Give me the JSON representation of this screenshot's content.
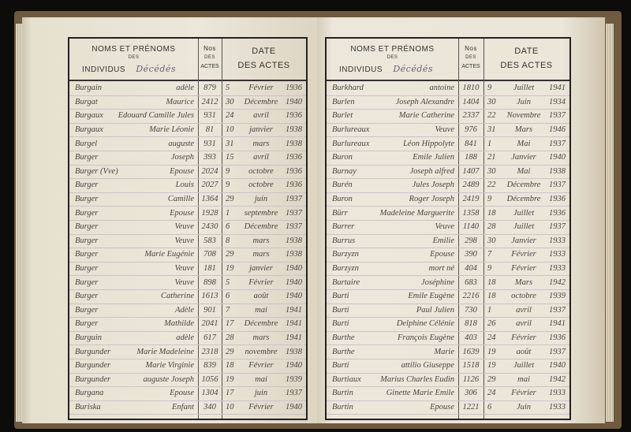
{
  "header": {
    "noms": "NOMS ET PRÉNOMS",
    "des": "DES",
    "individus": "INDIVIDUS",
    "category": "Décédés",
    "no": "Nos",
    "no_des": "DES",
    "no_actes": "ACTES",
    "date": "DATE",
    "date_actes": "DES ACTES"
  },
  "left_rows": [
    [
      "Burgain",
      "adèle",
      "879",
      "5",
      "Février",
      "1936"
    ],
    [
      "Burgat",
      "Maurice",
      "2412",
      "30",
      "Décembre",
      "1940"
    ],
    [
      "Burgaux",
      "Edouard Camille Jules",
      "931",
      "24",
      "avril",
      "1936"
    ],
    [
      "Burgaux",
      "Marie Léonie",
      "81",
      "10",
      "janvier",
      "1938"
    ],
    [
      "Burgel",
      "auguste",
      "931",
      "31",
      "mars",
      "1938"
    ],
    [
      "Burger",
      "Joseph",
      "393",
      "15",
      "avril",
      "1936"
    ],
    [
      "Burger (Vve)",
      "Epouse",
      "2024",
      "9",
      "octobre",
      "1936"
    ],
    [
      "Burger",
      "Louis",
      "2027",
      "9",
      "octobre",
      "1936"
    ],
    [
      "Burger",
      "Camille",
      "1364",
      "29",
      "juin",
      "1937"
    ],
    [
      "Burger",
      "Epouse",
      "1928",
      "1",
      "septembre",
      "1937"
    ],
    [
      "Burger",
      "Veuve",
      "2430",
      "6",
      "Décembre",
      "1937"
    ],
    [
      "Burger",
      "Veuve",
      "583",
      "8",
      "mars",
      "1938"
    ],
    [
      "Burger",
      "Marie Eugénie",
      "708",
      "29",
      "mars",
      "1938"
    ],
    [
      "Burger",
      "Veuve",
      "181",
      "19",
      "janvier",
      "1940"
    ],
    [
      "Burger",
      "Veuve",
      "898",
      "5",
      "Février",
      "1940"
    ],
    [
      "Burger",
      "Catherine",
      "1613",
      "6",
      "août",
      "1940"
    ],
    [
      "Burger",
      "Adèle",
      "901",
      "7",
      "mai",
      "1941"
    ],
    [
      "Burger",
      "Mathilde",
      "2041",
      "17",
      "Décembre",
      "1941"
    ],
    [
      "Burguin",
      "adèle",
      "617",
      "28",
      "mars",
      "1941"
    ],
    [
      "Burgunder",
      "Marie Madeleine",
      "2318",
      "29",
      "novembre",
      "1938"
    ],
    [
      "Burgunder",
      "Marie Virginie",
      "839",
      "18",
      "Février",
      "1940"
    ],
    [
      "Burgunder",
      "auguste Joseph",
      "1056",
      "19",
      "mai",
      "1939"
    ],
    [
      "Burgana",
      "Epouse",
      "1304",
      "17",
      "juin",
      "1937"
    ],
    [
      "Buriska",
      "Enfant",
      "340",
      "10",
      "Février",
      "1940"
    ]
  ],
  "right_rows": [
    [
      "Burkhard",
      "antoine",
      "1810",
      "9",
      "Juillet",
      "1941"
    ],
    [
      "Burlen",
      "Joseph Alexandre",
      "1404",
      "30",
      "Juin",
      "1934"
    ],
    [
      "Burlet",
      "Marie Catherine",
      "2337",
      "22",
      "Novembre",
      "1937"
    ],
    [
      "Burlureaux",
      "Veuve",
      "976",
      "31",
      "Mars",
      "1946"
    ],
    [
      "Burlureaux",
      "Léon Hippolyte",
      "841",
      "1",
      "Mai",
      "1937"
    ],
    [
      "Buron",
      "Emile Julien",
      "188",
      "21",
      "Janvier",
      "1940"
    ],
    [
      "Burnay",
      "Joseph alfred",
      "1407",
      "30",
      "Mai",
      "1938"
    ],
    [
      "Burén",
      "Jules Joseph",
      "2489",
      "22",
      "Décembre",
      "1937"
    ],
    [
      "Buron",
      "Roger Joseph",
      "2419",
      "9",
      "Décembre",
      "1936"
    ],
    [
      "Bürr",
      "Madeleine Marguerite",
      "1358",
      "18",
      "Juillet",
      "1936"
    ],
    [
      "Burrer",
      "Veuve",
      "1140",
      "28",
      "Juillet",
      "1937"
    ],
    [
      "Burrus",
      "Emilie",
      "298",
      "30",
      "Janvier",
      "1933"
    ],
    [
      "Burzyzn",
      "Epouse",
      "390",
      "7",
      "Février",
      "1933"
    ],
    [
      "Burzyzn",
      "mort né",
      "404",
      "9",
      "Février",
      "1933"
    ],
    [
      "Burtaire",
      "Joséphine",
      "683",
      "18",
      "Mars",
      "1942"
    ],
    [
      "Burti",
      "Emile Eugène",
      "2216",
      "18",
      "octobre",
      "1939"
    ],
    [
      "Burti",
      "Paul Julien",
      "730",
      "1",
      "avril",
      "1937"
    ],
    [
      "Burti",
      "Delphine Célénie",
      "818",
      "26",
      "avril",
      "1941"
    ],
    [
      "Burthe",
      "François Eugène",
      "403",
      "24",
      "Février",
      "1936"
    ],
    [
      "Burthe",
      "Marie",
      "1639",
      "19",
      "août",
      "1937"
    ],
    [
      "Burti",
      "attilio Giuseppe",
      "1518",
      "19",
      "Juillet",
      "1940"
    ],
    [
      "Burtiaux",
      "Marius Charles Eudin",
      "1126",
      "29",
      "mai",
      "1942"
    ],
    [
      "Burtin",
      "Ginette Marie Emile",
      "306",
      "24",
      "Février",
      "1933"
    ],
    [
      "Burtin",
      "Epouse",
      "1221",
      "6",
      "Juin",
      "1933"
    ]
  ]
}
